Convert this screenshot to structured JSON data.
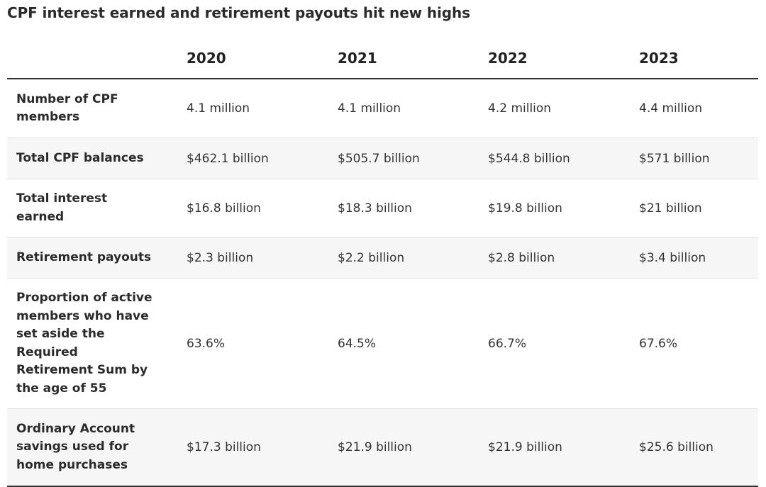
{
  "title": "CPF interest earned and retirement payouts hit new highs",
  "chart_data": {
    "type": "table",
    "title": "CPF interest earned and retirement payouts hit new highs",
    "columns": [
      "2020",
      "2021",
      "2022",
      "2023"
    ],
    "rows": [
      {
        "label": "Number of CPF members",
        "values": [
          "4.1 million",
          "4.1 million",
          "4.2 million",
          "4.4 million"
        ]
      },
      {
        "label": "Total CPF balances",
        "values": [
          "$462.1 billion",
          "$505.7 billion",
          "$544.8 billion",
          "$571 billion"
        ]
      },
      {
        "label": "Total interest earned",
        "values": [
          "$16.8 billion",
          "$18.3 billion",
          "$19.8 billion",
          "$21 billion"
        ]
      },
      {
        "label": "Retirement payouts",
        "values": [
          "$2.3 billion",
          "$2.2 billion",
          "$2.8 billion",
          "$3.4 billion"
        ]
      },
      {
        "label": "Proportion of active members who have set aside the Required Retirement Sum by the age of 55",
        "values": [
          "63.6%",
          "64.5%",
          "66.7%",
          "67.6%"
        ]
      },
      {
        "label": "Ordinary Account savings used for home purchases",
        "values": [
          "$17.3 billion",
          "$21.9 billion",
          "$21.9 billion",
          "$25.6 billion"
        ]
      }
    ]
  }
}
